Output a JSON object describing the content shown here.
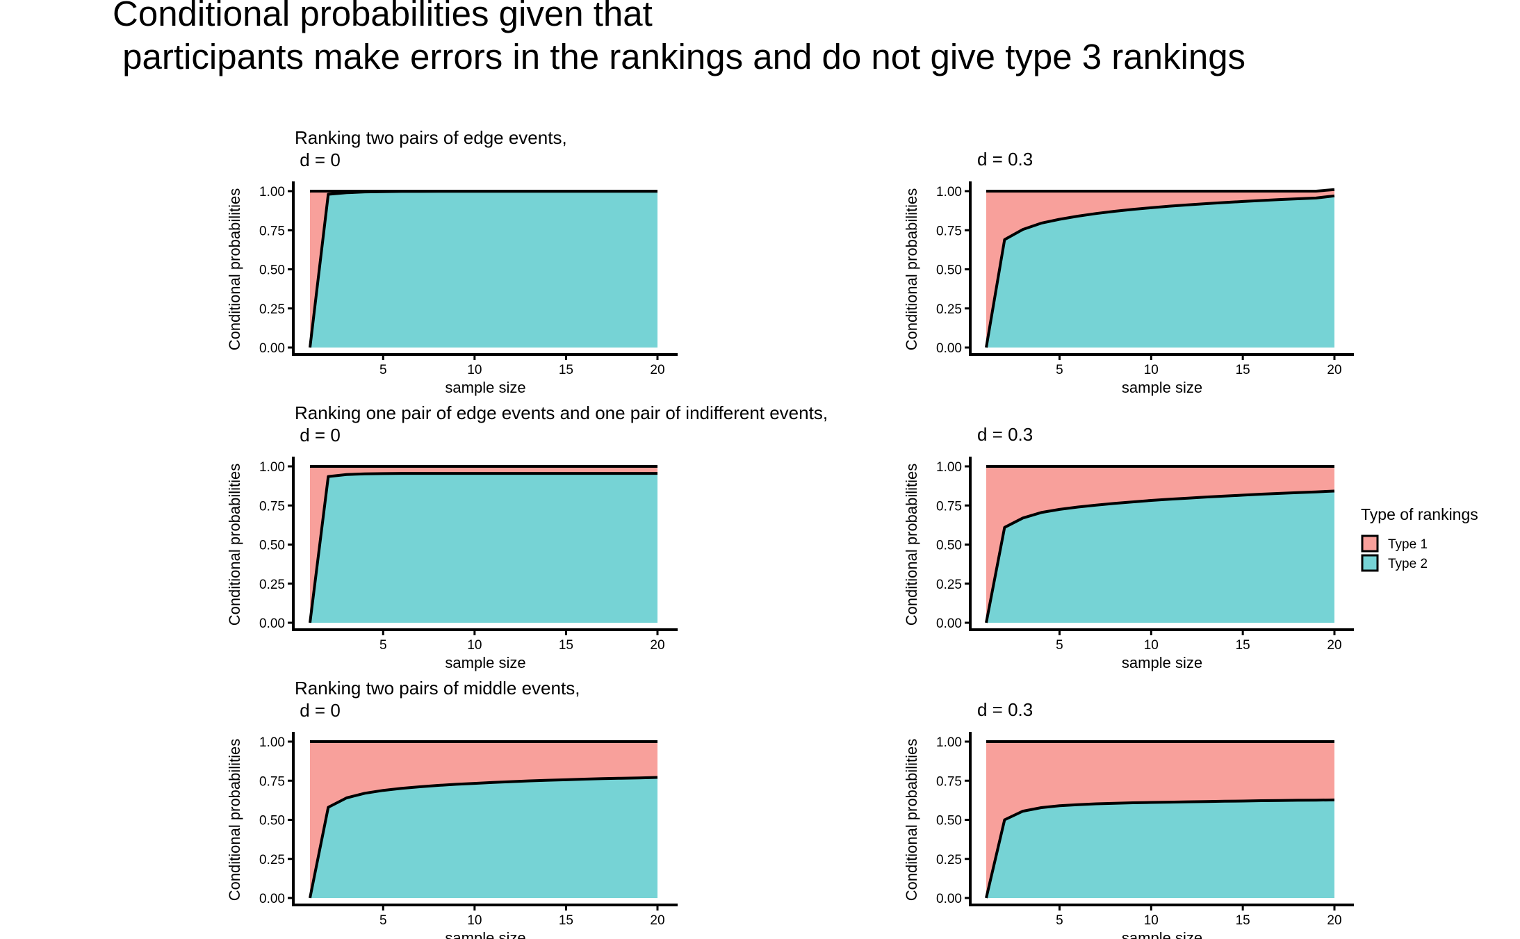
{
  "title": "Conditional probabilities given that\n participants make errors in the rankings and do not give type 3 rankings",
  "legend": {
    "title": "Type of rankings",
    "position": "right",
    "items": [
      {
        "label": "Type 1",
        "color": "#F8A09B"
      },
      {
        "label": "Type 2",
        "color": "#76D3D5"
      }
    ]
  },
  "chart_data": [
    {
      "type": "area",
      "title": "Ranking two pairs of edge events,\n d = 0",
      "xlabel": "sample size",
      "ylabel": "Conditional probabilities",
      "xlim": [
        1,
        20
      ],
      "ylim": [
        0,
        1
      ],
      "xticks": [
        5,
        10,
        15,
        20
      ],
      "yticks": [
        "0.00",
        "0.25",
        "0.50",
        "0.75",
        "1.00"
      ],
      "x": [
        1,
        2,
        3,
        4,
        5,
        6,
        7,
        8,
        9,
        10,
        11,
        12,
        13,
        14,
        15,
        16,
        17,
        18,
        19,
        20
      ],
      "series": [
        {
          "name": "Type 2",
          "values": [
            0,
            0.98,
            0.99,
            0.995,
            0.997,
            0.998,
            0.998,
            0.999,
            0.999,
            0.999,
            0.999,
            0.999,
            0.999,
            0.999,
            0.999,
            0.999,
            0.999,
            0.999,
            0.999,
            0.999
          ]
        },
        {
          "name": "Type 1",
          "values": [
            1,
            0.02,
            0.01,
            0.005,
            0.003,
            0.002,
            0.002,
            0.001,
            0.001,
            0.001,
            0.001,
            0.001,
            0.001,
            0.001,
            0.001,
            0.001,
            0.001,
            0.001,
            0.001,
            0.001
          ]
        }
      ],
      "top": [
        1,
        1,
        1,
        1,
        1,
        1,
        1,
        1,
        1,
        1,
        1,
        1,
        1,
        1,
        1,
        1,
        1,
        1,
        1,
        1
      ]
    },
    {
      "type": "area",
      "title": "d = 0.3",
      "xlabel": "sample size",
      "ylabel": "Conditional probabilities",
      "xlim": [
        1,
        20
      ],
      "ylim": [
        0,
        1
      ],
      "xticks": [
        5,
        10,
        15,
        20
      ],
      "yticks": [
        "0.00",
        "0.25",
        "0.50",
        "0.75",
        "1.00"
      ],
      "x": [
        1,
        2,
        3,
        4,
        5,
        6,
        7,
        8,
        9,
        10,
        11,
        12,
        13,
        14,
        15,
        16,
        17,
        18,
        19,
        20
      ],
      "series": [
        {
          "name": "Type 2",
          "values": [
            0,
            0.69,
            0.755,
            0.795,
            0.82,
            0.84,
            0.857,
            0.871,
            0.883,
            0.894,
            0.904,
            0.912,
            0.92,
            0.927,
            0.934,
            0.94,
            0.946,
            0.951,
            0.956,
            0.97
          ]
        },
        {
          "name": "Type 1",
          "values": [
            1,
            0.31,
            0.245,
            0.205,
            0.18,
            0.16,
            0.143,
            0.129,
            0.117,
            0.106,
            0.096,
            0.088,
            0.08,
            0.073,
            0.066,
            0.06,
            0.054,
            0.049,
            0.044,
            0.04
          ]
        }
      ],
      "top": [
        1,
        1,
        1,
        1,
        1,
        1,
        1,
        1,
        1,
        1,
        1,
        1,
        1,
        1,
        1,
        1,
        1,
        1,
        1,
        1.01
      ]
    },
    {
      "type": "area",
      "title": "Ranking one pair of edge events and one pair of indifferent events,\n d = 0",
      "xlabel": "sample size",
      "ylabel": "Conditional probabilities",
      "xlim": [
        1,
        20
      ],
      "ylim": [
        0,
        1
      ],
      "xticks": [
        5,
        10,
        15,
        20
      ],
      "yticks": [
        "0.00",
        "0.25",
        "0.50",
        "0.75",
        "1.00"
      ],
      "x": [
        1,
        2,
        3,
        4,
        5,
        6,
        7,
        8,
        9,
        10,
        11,
        12,
        13,
        14,
        15,
        16,
        17,
        18,
        19,
        20
      ],
      "series": [
        {
          "name": "Type 2",
          "values": [
            0,
            0.935,
            0.948,
            0.952,
            0.954,
            0.955,
            0.955,
            0.955,
            0.955,
            0.955,
            0.955,
            0.955,
            0.955,
            0.955,
            0.955,
            0.955,
            0.955,
            0.955,
            0.955,
            0.955
          ]
        },
        {
          "name": "Type 1",
          "values": [
            1,
            0.065,
            0.052,
            0.048,
            0.046,
            0.045,
            0.045,
            0.045,
            0.045,
            0.045,
            0.045,
            0.045,
            0.045,
            0.045,
            0.045,
            0.045,
            0.045,
            0.045,
            0.045,
            0.045
          ]
        }
      ],
      "top": [
        1,
        1,
        1,
        1,
        1,
        1,
        1,
        1,
        1,
        1,
        1,
        1,
        1,
        1,
        1,
        1,
        1,
        1,
        1,
        1
      ]
    },
    {
      "type": "area",
      "title": "d = 0.3",
      "xlabel": "sample size",
      "ylabel": "Conditional probabilities",
      "xlim": [
        1,
        20
      ],
      "ylim": [
        0,
        1
      ],
      "xticks": [
        5,
        10,
        15,
        20
      ],
      "yticks": [
        "0.00",
        "0.25",
        "0.50",
        "0.75",
        "1.00"
      ],
      "x": [
        1,
        2,
        3,
        4,
        5,
        6,
        7,
        8,
        9,
        10,
        11,
        12,
        13,
        14,
        15,
        16,
        17,
        18,
        19,
        20
      ],
      "series": [
        {
          "name": "Type 2",
          "values": [
            0,
            0.61,
            0.67,
            0.705,
            0.725,
            0.74,
            0.752,
            0.763,
            0.773,
            0.782,
            0.79,
            0.797,
            0.804,
            0.81,
            0.816,
            0.822,
            0.827,
            0.832,
            0.837,
            0.842
          ]
        },
        {
          "name": "Type 1",
          "values": [
            1,
            0.39,
            0.33,
            0.295,
            0.275,
            0.26,
            0.248,
            0.237,
            0.227,
            0.218,
            0.21,
            0.203,
            0.196,
            0.19,
            0.184,
            0.178,
            0.173,
            0.168,
            0.163,
            0.158
          ]
        }
      ],
      "top": [
        1,
        1,
        1,
        1,
        1,
        1,
        1,
        1,
        1,
        1,
        1,
        1,
        1,
        1,
        1,
        1,
        1,
        1,
        1,
        1
      ]
    },
    {
      "type": "area",
      "title": "Ranking two pairs of middle events,\n d = 0",
      "xlabel": "sample size",
      "ylabel": "Conditional probabilities",
      "xlim": [
        1,
        20
      ],
      "ylim": [
        0,
        1
      ],
      "xticks": [
        5,
        10,
        15,
        20
      ],
      "yticks": [
        "0.00",
        "0.25",
        "0.50",
        "0.75",
        "1.00"
      ],
      "x": [
        1,
        2,
        3,
        4,
        5,
        6,
        7,
        8,
        9,
        10,
        11,
        12,
        13,
        14,
        15,
        16,
        17,
        18,
        19,
        20
      ],
      "series": [
        {
          "name": "Type 2",
          "values": [
            0,
            0.58,
            0.64,
            0.67,
            0.688,
            0.701,
            0.711,
            0.72,
            0.727,
            0.733,
            0.739,
            0.744,
            0.749,
            0.753,
            0.756,
            0.76,
            0.763,
            0.766,
            0.768,
            0.771
          ]
        },
        {
          "name": "Type 1",
          "values": [
            1,
            0.42,
            0.36,
            0.33,
            0.312,
            0.299,
            0.289,
            0.28,
            0.273,
            0.267,
            0.261,
            0.256,
            0.251,
            0.247,
            0.244,
            0.24,
            0.237,
            0.234,
            0.232,
            0.229
          ]
        }
      ],
      "top": [
        1,
        1,
        1,
        1,
        1,
        1,
        1,
        1,
        1,
        1,
        1,
        1,
        1,
        1,
        1,
        1,
        1,
        1,
        1,
        1
      ]
    },
    {
      "type": "area",
      "title": "d = 0.3",
      "xlabel": "sample size",
      "ylabel": "Conditional probabilities",
      "xlim": [
        1,
        20
      ],
      "ylim": [
        0,
        1
      ],
      "xticks": [
        5,
        10,
        15,
        20
      ],
      "yticks": [
        "0.00",
        "0.25",
        "0.50",
        "0.75",
        "1.00"
      ],
      "x": [
        1,
        2,
        3,
        4,
        5,
        6,
        7,
        8,
        9,
        10,
        11,
        12,
        13,
        14,
        15,
        16,
        17,
        18,
        19,
        20
      ],
      "series": [
        {
          "name": "Type 2",
          "values": [
            0,
            0.5,
            0.555,
            0.578,
            0.59,
            0.597,
            0.602,
            0.606,
            0.609,
            0.611,
            0.613,
            0.615,
            0.617,
            0.619,
            0.62,
            0.622,
            0.623,
            0.625,
            0.626,
            0.627
          ]
        },
        {
          "name": "Type 1",
          "values": [
            1,
            0.5,
            0.445,
            0.422,
            0.41,
            0.403,
            0.398,
            0.394,
            0.391,
            0.389,
            0.387,
            0.385,
            0.383,
            0.381,
            0.38,
            0.378,
            0.377,
            0.375,
            0.374,
            0.373
          ]
        }
      ],
      "top": [
        1,
        1,
        1,
        1,
        1,
        1,
        1,
        1,
        1,
        1,
        1,
        1,
        1,
        1,
        1,
        1,
        1,
        1,
        1,
        1
      ]
    }
  ]
}
